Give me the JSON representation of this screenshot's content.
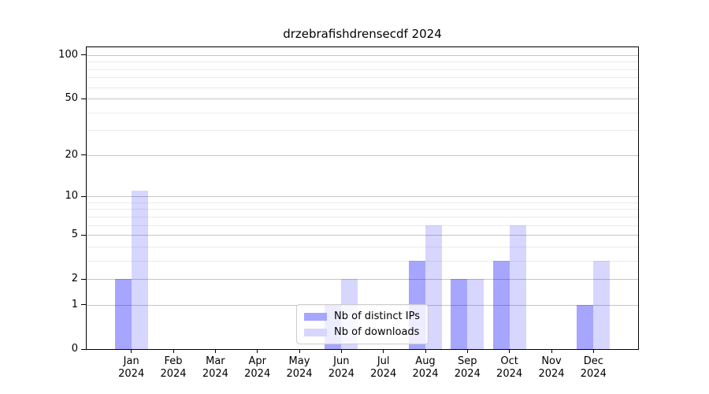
{
  "chart_data": {
    "type": "bar",
    "title": "drzebrafishdrensecdf 2024",
    "categories": [
      "Jan",
      "Feb",
      "Mar",
      "Apr",
      "May",
      "Jun",
      "Jul",
      "Aug",
      "Sep",
      "Oct",
      "Nov",
      "Dec"
    ],
    "x_year": "2024",
    "series": [
      {
        "id": "distinct-ips",
        "name": "Nb of distinct IPs",
        "values": [
          2,
          0,
          0,
          0,
          0,
          1,
          0,
          3,
          2,
          3,
          0,
          1
        ],
        "fill": "rgba(0,0,255,0.35)",
        "hex": "#a6a6ff"
      },
      {
        "id": "downloads",
        "name": "Nb of downloads",
        "values": [
          11,
          0,
          0,
          0,
          0,
          2,
          0,
          6,
          2,
          6,
          0,
          3
        ],
        "fill": "rgba(0,0,255,0.16)",
        "hex": "#d6d6ff"
      }
    ],
    "xlabel": "",
    "ylabel": "",
    "yscale": "log1p",
    "ylim": [
      0,
      113
    ],
    "y_ticks": [
      0,
      1,
      2,
      5,
      10,
      20,
      50,
      100
    ],
    "y_minor_gridlines": [
      3,
      4,
      6,
      7,
      8,
      9,
      30,
      40,
      60,
      70,
      80,
      90
    ],
    "grid": true,
    "legend_position": "lower center",
    "colors": {
      "major_grid": "#c6c6c6",
      "minor_grid": "#ebebeb",
      "axis": "#000000",
      "legend_border": "#cccccc"
    }
  }
}
